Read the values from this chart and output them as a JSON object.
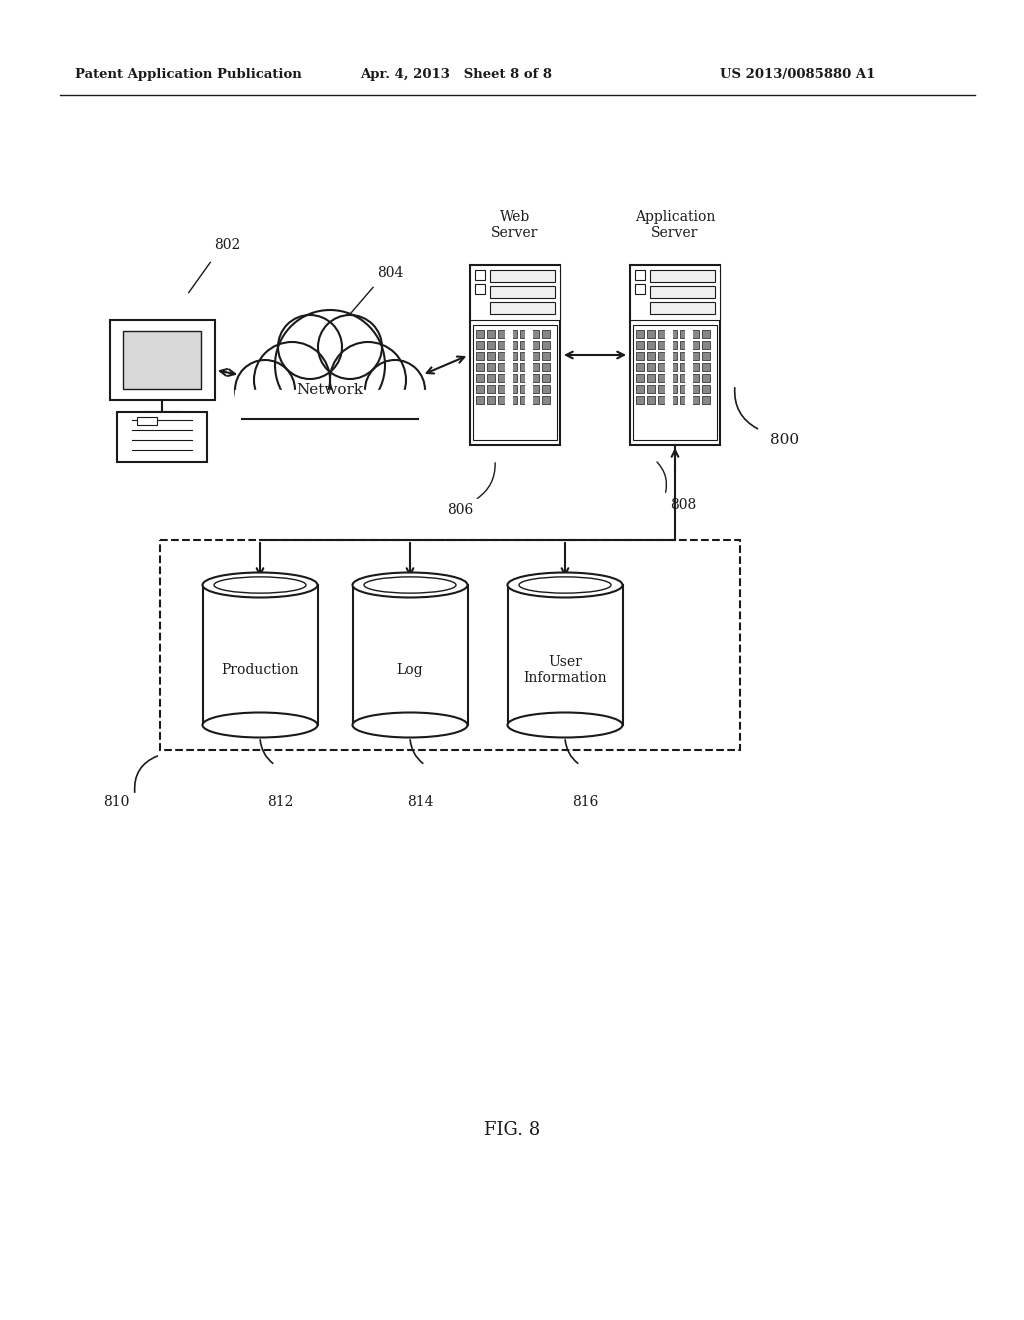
{
  "bg_color": "#ffffff",
  "header_left": "Patent Application Publication",
  "header_mid": "Apr. 4, 2013   Sheet 8 of 8",
  "header_right": "US 2013/0085880 A1",
  "fig_label": "FIG. 8",
  "labels": {
    "802": "802",
    "804": "804",
    "806": "806",
    "808": "808",
    "800": "800",
    "810": "810",
    "812": "812",
    "814": "814",
    "816": "816",
    "network": "Network",
    "web_server": "Web\nServer",
    "app_server": "Application\nServer",
    "production": "Production",
    "log": "Log",
    "user_info": "User\nInformation"
  },
  "line_color": "#1a1a1a",
  "text_color": "#1a1a1a"
}
